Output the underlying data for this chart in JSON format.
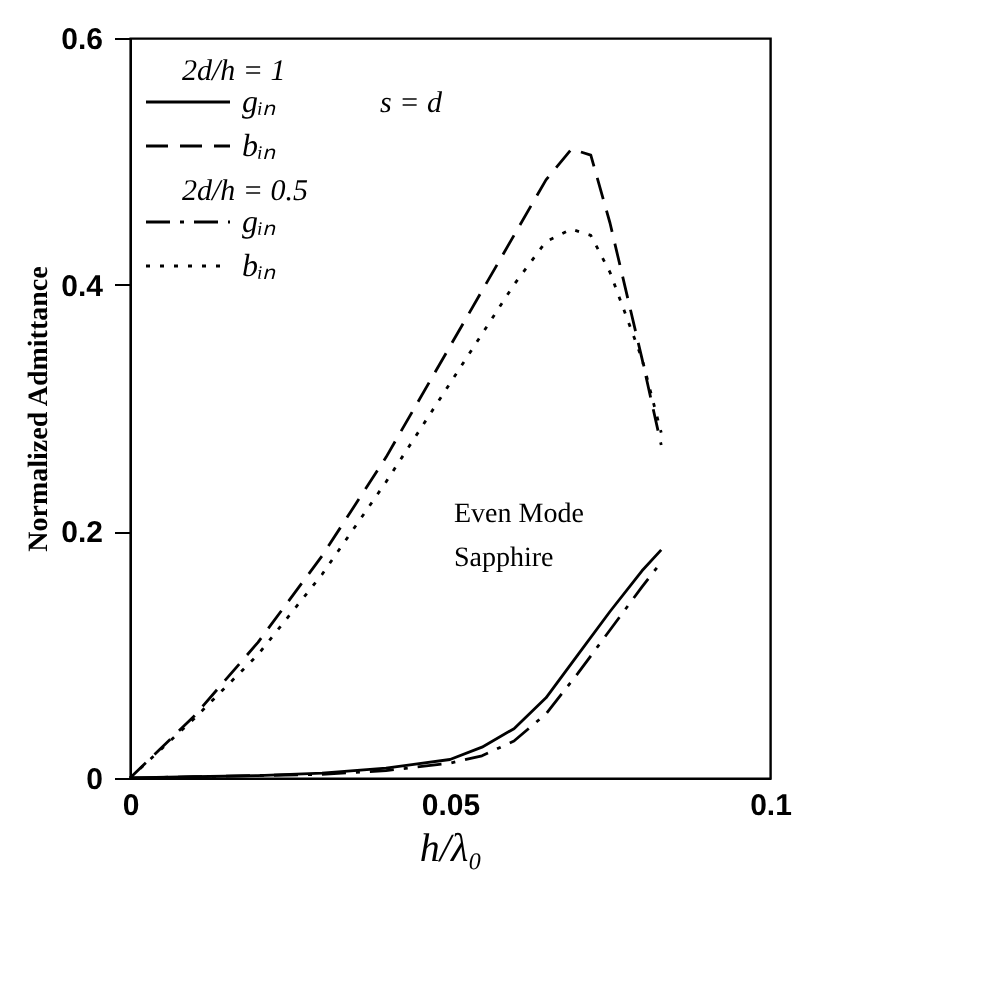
{
  "chart_data": {
    "type": "line",
    "xlabel": "h/λ₀",
    "ylabel": "Normalized Admittance",
    "xlim": [
      0,
      0.1
    ],
    "xticks": [
      0,
      0.05,
      0.1
    ],
    "ylim": [
      0,
      0.6
    ],
    "yticks": [
      0,
      0.2,
      0.4,
      0.6
    ],
    "grid": false,
    "legend": "top left",
    "marker": "none",
    "annotations": [
      "2d/h = 1",
      "2d/h = 0.5",
      "s = d",
      "Even Mode Sapphire"
    ],
    "series": [
      {
        "name": "gᵢₙ",
        "color": "#000000",
        "line_style": "solid",
        "x": [
          0,
          0.01,
          0.02,
          0.03,
          0.04,
          0.05,
          0.055,
          0.06,
          0.065,
          0.07,
          0.075,
          0.08,
          0.083
        ],
        "values": [
          0,
          0.001,
          0.002,
          0.004,
          0.008,
          0.015,
          0.025,
          0.04,
          0.065,
          0.1,
          0.135,
          0.168,
          0.185
        ]
      },
      {
        "name": "bᵢₙ",
        "color": "#000000",
        "line_style": "dashed",
        "x": [
          0,
          0.005,
          0.01,
          0.02,
          0.03,
          0.04,
          0.05,
          0.06,
          0.065,
          0.069,
          0.072,
          0.075,
          0.08,
          0.083
        ],
        "values": [
          0,
          0.025,
          0.05,
          0.11,
          0.18,
          0.26,
          0.35,
          0.44,
          0.485,
          0.51,
          0.505,
          0.45,
          0.34,
          0.27
        ]
      },
      {
        "name": "gᵢₙ",
        "color": "#000000",
        "line_style": "dashdot",
        "x": [
          0,
          0.01,
          0.02,
          0.03,
          0.04,
          0.05,
          0.055,
          0.06,
          0.065,
          0.07,
          0.075,
          0.08,
          0.083
        ],
        "values": [
          0,
          0.001,
          0.002,
          0.003,
          0.006,
          0.012,
          0.018,
          0.03,
          0.052,
          0.085,
          0.12,
          0.155,
          0.175
        ]
      },
      {
        "name": "bᵢₙ",
        "color": "#000000",
        "line_style": "dotted",
        "x": [
          0,
          0.005,
          0.01,
          0.02,
          0.03,
          0.04,
          0.05,
          0.06,
          0.065,
          0.069,
          0.072,
          0.075,
          0.08,
          0.083
        ],
        "values": [
          0,
          0.024,
          0.048,
          0.1,
          0.165,
          0.24,
          0.32,
          0.4,
          0.435,
          0.445,
          0.44,
          0.41,
          0.34,
          0.28
        ]
      }
    ]
  }
}
